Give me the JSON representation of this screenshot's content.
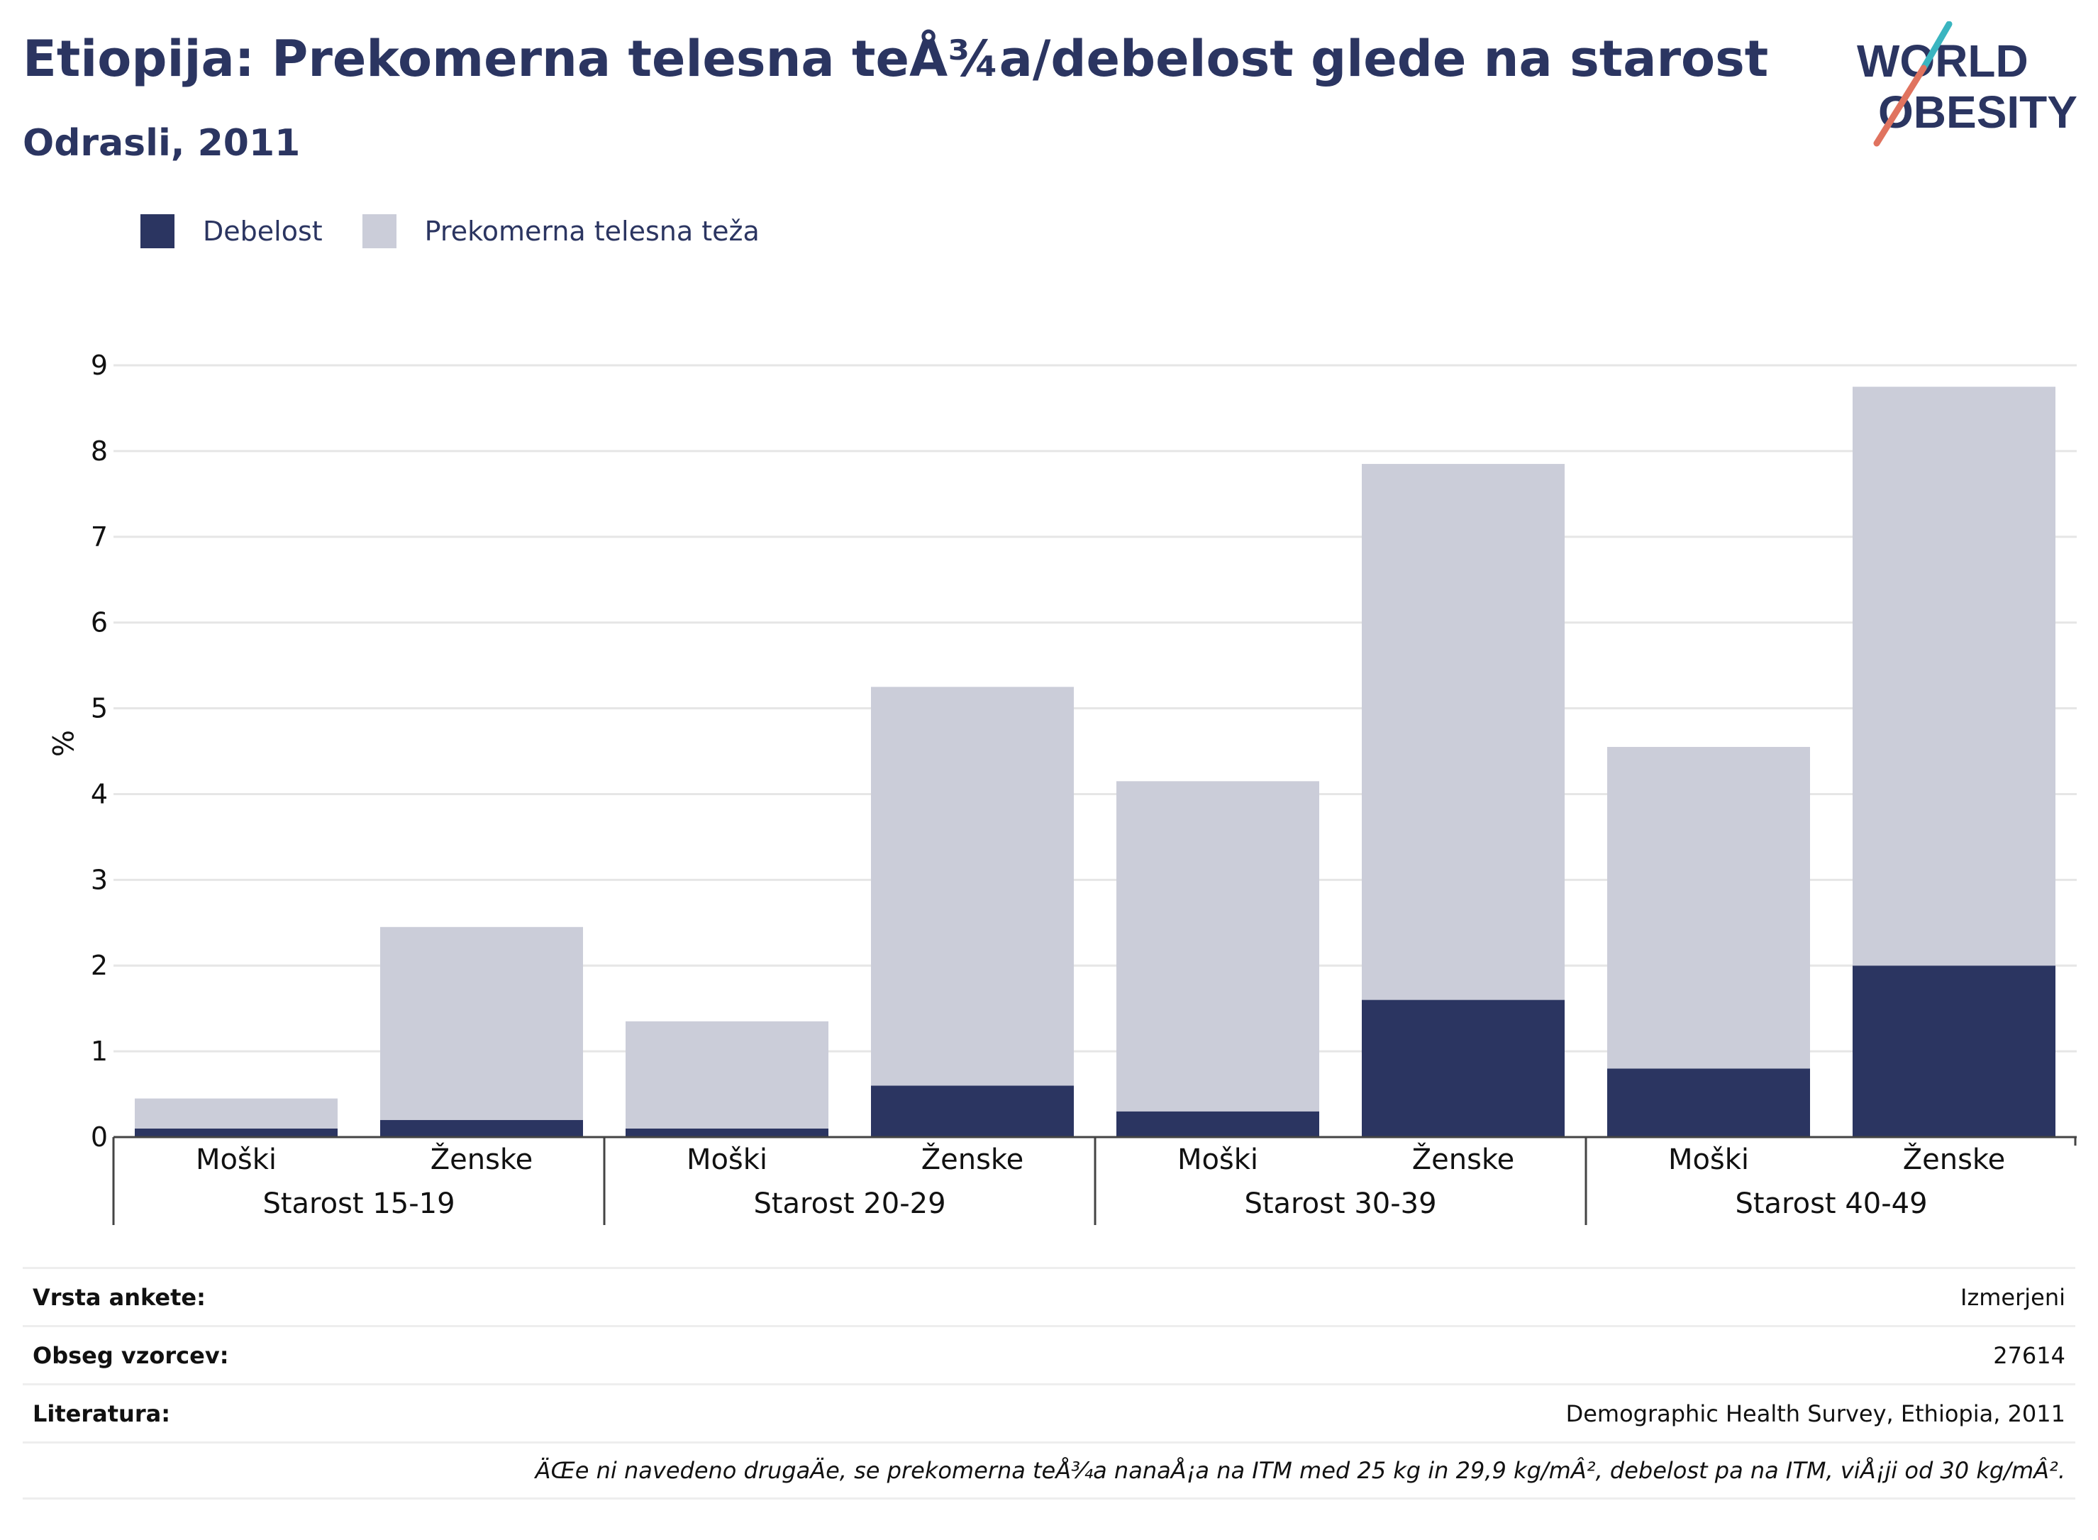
{
  "header": {
    "title": "Etiopija: Prekomerna telesna teÅ¾a/debelost glede na starost",
    "subtitle": "Odrasli, 2011"
  },
  "logo": {
    "line1": "WORLD",
    "line2": "OBESITY"
  },
  "colors": {
    "obesity": "#2b3561",
    "overweight": "#cbcdd9",
    "text": "#2b3561",
    "grid": "#e6e6e6",
    "accent_teal": "#3ab5c0",
    "accent_coral": "#e0735f"
  },
  "chart_data": {
    "type": "bar",
    "stacked": true,
    "ylabel": "%",
    "ylim": [
      0,
      9
    ],
    "yticks": [
      "0",
      "1",
      "2",
      "3",
      "4",
      "5",
      "6",
      "7",
      "8",
      "9"
    ],
    "legend_position": "top-left",
    "groups": [
      {
        "label": "Starost 15-19",
        "categories": [
          "Moški",
          "Ženske"
        ]
      },
      {
        "label": "Starost 20-29",
        "categories": [
          "Moški",
          "Ženske"
        ]
      },
      {
        "label": "Starost 30-39",
        "categories": [
          "Moški",
          "Ženske"
        ]
      },
      {
        "label": "Starost 40-49",
        "categories": [
          "Moški",
          "Ženske"
        ]
      }
    ],
    "series": [
      {
        "name": "Debelost",
        "color": "#2b3561",
        "values": [
          0.1,
          0.2,
          0.1,
          0.6,
          0.3,
          1.6,
          0.8,
          2.0
        ]
      },
      {
        "name": "Prekomerna telesna teža",
        "color": "#cbcdd9",
        "values": [
          0.35,
          2.25,
          1.25,
          4.65,
          3.85,
          6.25,
          3.75,
          6.75
        ]
      }
    ]
  },
  "meta": {
    "rows": [
      {
        "key": "Vrsta ankete:",
        "value": "Izmerjeni"
      },
      {
        "key": "Obseg vzorcev:",
        "value": "27614"
      },
      {
        "key": "Literatura:",
        "value": "Demographic Health Survey, Ethiopia, 2011"
      }
    ],
    "note": "ÄŒe ni navedeno drugaÄe, se prekomerna teÅ¾a nanaÅ¡a na ITM med 25 kg in 29,9 kg/mÂ², debelost pa na ITM, viÅ¡ji od 30 kg/mÂ²."
  }
}
